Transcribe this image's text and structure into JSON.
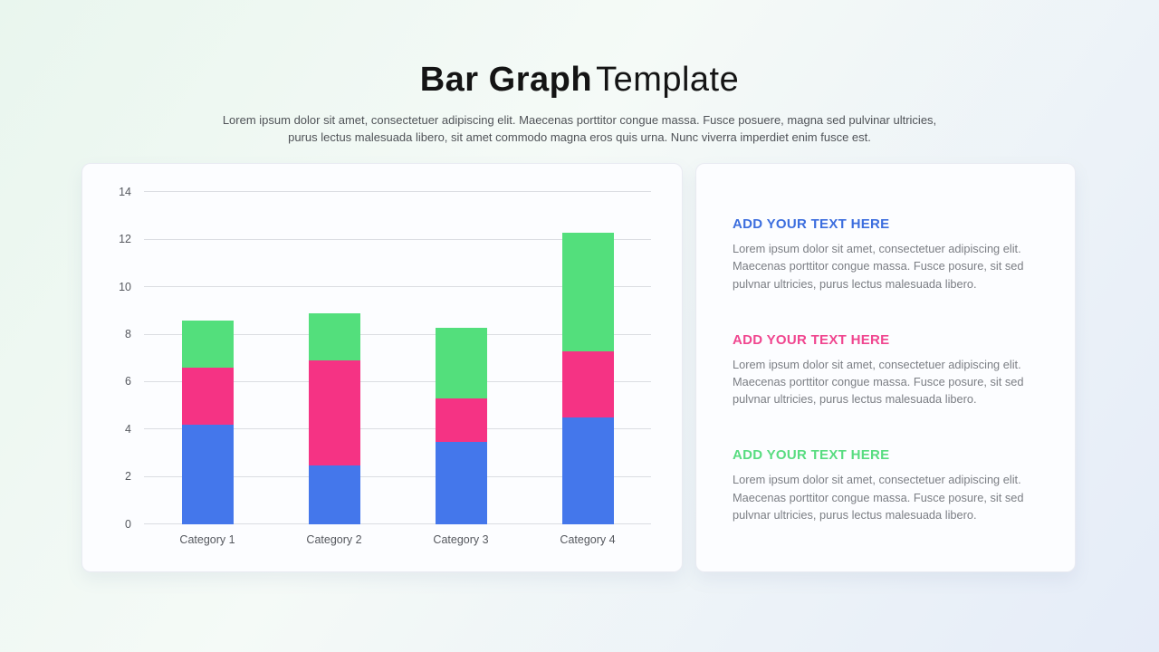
{
  "header": {
    "title_bold": "Bar Graph",
    "title_light": "Template",
    "subtitle": "Lorem ipsum dolor sit amet, consectetuer adipiscing elit. Maecenas porttitor congue massa. Fusce posuere, magna sed pulvinar ultricies, purus lectus malesuada libero, sit amet commodo magna eros quis urna. Nunc viverra imperdiet enim fusce est."
  },
  "colors": {
    "bar_blue": "#4477eb",
    "bar_pink": "#f53384",
    "bar_green": "#53df7c",
    "accent_blue": "#3c6ede",
    "accent_pink": "#f0468f",
    "accent_green": "#58dc80",
    "gridline": "#dbdde2",
    "axis_text": "#55585e",
    "body_text": "#7b7e84"
  },
  "chart_data": {
    "type": "bar",
    "stacked": true,
    "title": "",
    "xlabel": "",
    "ylabel": "",
    "categories": [
      "Category 1",
      "Category 2",
      "Category 3",
      "Category 4"
    ],
    "series": [
      {
        "name": "blue",
        "color_key": "bar_blue",
        "values": [
          4.2,
          2.5,
          3.5,
          4.5
        ]
      },
      {
        "name": "pink",
        "color_key": "bar_pink",
        "values": [
          2.4,
          4.4,
          1.8,
          2.8
        ]
      },
      {
        "name": "green",
        "color_key": "bar_green",
        "values": [
          2.0,
          2.0,
          3.0,
          5.0
        ]
      }
    ],
    "stack_totals": [
      8.6,
      8.9,
      8.3,
      12.3
    ],
    "ylim": [
      0,
      14
    ],
    "yticks": [
      0,
      2,
      4,
      6,
      8,
      10,
      12,
      14
    ],
    "grid": true,
    "legend": "none"
  },
  "text_card": {
    "sections": [
      {
        "heading": "ADD YOUR TEXT HERE",
        "color_key": "accent_blue",
        "body": "Lorem ipsum dolor sit amet, consectetuer adipiscing elit. Maecenas porttitor congue massa. Fusce posure, sit sed pulvnar ultricies, purus lectus malesuada libero."
      },
      {
        "heading": "ADD YOUR TEXT HERE",
        "color_key": "accent_pink",
        "body": "Lorem ipsum dolor sit amet, consectetuer adipiscing elit. Maecenas porttitor congue massa. Fusce posure, sit sed pulvnar ultricies, purus lectus malesuada libero."
      },
      {
        "heading": "ADD YOUR TEXT HERE",
        "color_key": "accent_green",
        "body": "Lorem ipsum dolor sit amet, consectetuer adipiscing elit. Maecenas porttitor congue massa. Fusce posure, sit sed pulvnar ultricies, purus lectus malesuada libero."
      }
    ]
  }
}
